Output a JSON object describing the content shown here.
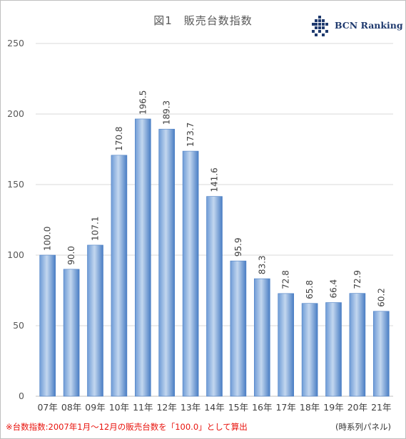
{
  "title": "図1　販売台数指数",
  "logo": {
    "text": "BCN Ranking",
    "icon": "bcn-grid-logo",
    "color": "#1f3a6e"
  },
  "footnote": "※台数指数:2007年1月～12月の販売台数を「100.0」として算出",
  "source_note": "(時系列パネル)",
  "colors": {
    "bar_light": "#c3d7ef",
    "bar_dark": "#4a7ec4",
    "grid": "#d9d9d9",
    "footnote": "#e8120c"
  },
  "chart_data": {
    "type": "bar",
    "title": "図1　販売台数指数",
    "categories": [
      "07年",
      "08年",
      "09年",
      "10年",
      "11年",
      "12年",
      "13年",
      "14年",
      "15年",
      "16年",
      "17年",
      "18年",
      "19年",
      "20年",
      "21年"
    ],
    "values": [
      100.0,
      90.0,
      107.1,
      170.8,
      196.5,
      189.3,
      173.7,
      141.6,
      95.9,
      83.3,
      72.8,
      65.8,
      66.4,
      72.9,
      60.2
    ],
    "data_labels": [
      "100.0",
      "90.0",
      "107.1",
      "170.8",
      "196.5",
      "189.3",
      "173.7",
      "141.6",
      "95.9",
      "83.3",
      "72.8",
      "65.8",
      "66.4",
      "72.9",
      "60.2"
    ],
    "ylim": [
      0,
      250
    ],
    "yticks": [
      0,
      50,
      100,
      150,
      200,
      250
    ],
    "xlabel": "",
    "ylabel": "",
    "grid": true,
    "legend": false
  }
}
